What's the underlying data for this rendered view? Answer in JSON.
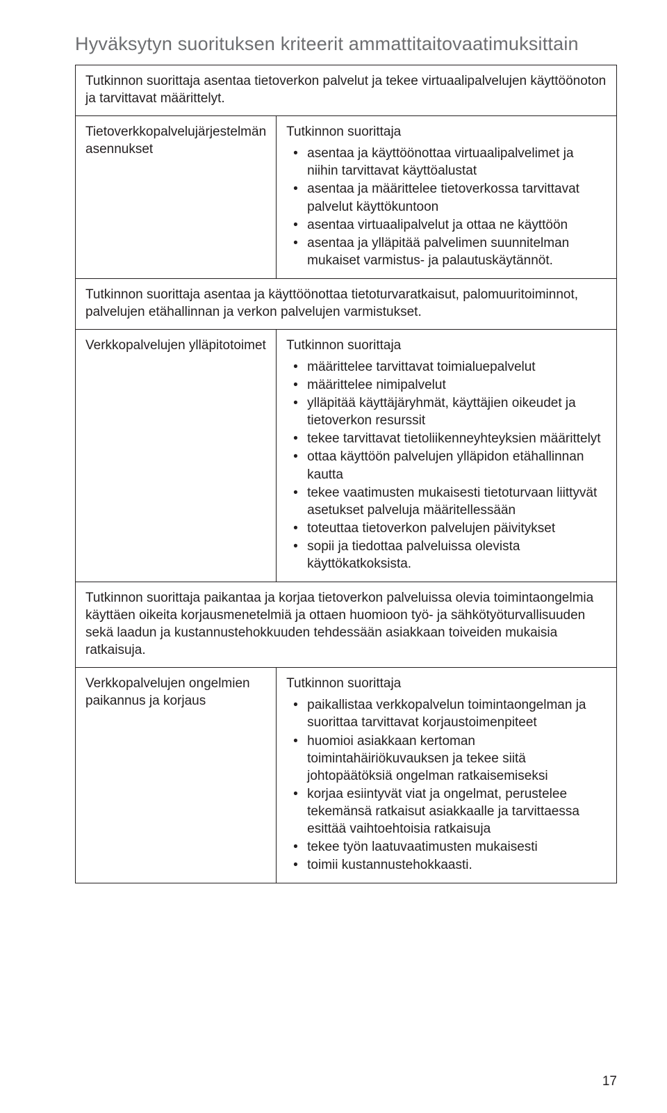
{
  "title": "Hyväksytyn suorituksen kriteerit ammattitaitovaatimuksittain",
  "pageNumber": "17",
  "sections": [
    {
      "header": "Tutkinnon suorittaja asentaa tietoverkon palvelut ja tekee virtuaalipalvelujen käyttöönoton ja tarvittavat määrittelyt.",
      "leftLabel": "Tietoverkkopalvelujärjestelmän asennukset",
      "intro": "Tutkinnon suorittaja",
      "bullets": [
        "asentaa ja käyttöönottaa virtuaalipalvelimet ja niihin tarvittavat käyttöalustat",
        "asentaa ja määrittelee tietoverkossa tarvittavat palvelut käyttökuntoon",
        "asentaa virtuaalipalvelut ja ottaa ne käyttöön",
        "asentaa ja ylläpitää palvelimen suunnitelman mukaiset varmistus- ja palautuskäytännöt."
      ]
    },
    {
      "header": "Tutkinnon suorittaja asentaa ja käyttöönottaa tietoturvaratkaisut, palomuuritoiminnot, palvelujen etähallinnan ja verkon palvelujen varmistukset.",
      "leftLabel": "Verkkopalvelujen ylläpitotoimet",
      "intro": "Tutkinnon suorittaja",
      "bullets": [
        "määrittelee tarvittavat toimialuepalvelut",
        "määrittelee nimipalvelut",
        "ylläpitää käyttäjäryhmät, käyttäjien oikeudet ja tietoverkon resurssit",
        "tekee tarvittavat tietoliikenneyhteyksien määrittelyt",
        "ottaa käyttöön palvelujen ylläpidon etähallinnan kautta",
        "tekee vaatimusten mukaisesti tietoturvaan liittyvät asetukset palveluja määritellessään",
        "toteuttaa tietoverkon palvelujen päivitykset",
        "sopii ja tiedottaa palveluissa olevista käyttökatkoksista."
      ]
    },
    {
      "header": "Tutkinnon suorittaja paikantaa ja korjaa tietoverkon palveluissa olevia toimintaongelmia käyttäen oikeita korjausmenetelmiä ja ottaen huomioon työ- ja sähkötyöturvallisuuden sekä laadun ja kustannustehokkuuden tehdessään asiakkaan toiveiden mukaisia ratkaisuja.",
      "leftLabel": "Verkkopalvelujen ongelmien paikannus ja korjaus",
      "intro": "Tutkinnon suorittaja",
      "bullets": [
        "paikallistaa verkkopalvelun toimintaongelman ja suorittaa tarvittavat korjaustoimenpiteet",
        "huomioi asiakkaan kertoman toimintahäiriökuvauksen ja tekee siitä johtopäätöksiä ongelman ratkaisemiseksi",
        "korjaa esiintyvät viat ja ongelmat, perustelee tekemänsä ratkaisut asiakkaalle ja tarvittaessa esittää vaihtoehtoisia ratkaisuja",
        "tekee työn laatuvaatimusten mukaisesti",
        "toimii kustannustehokkaasti."
      ]
    }
  ]
}
